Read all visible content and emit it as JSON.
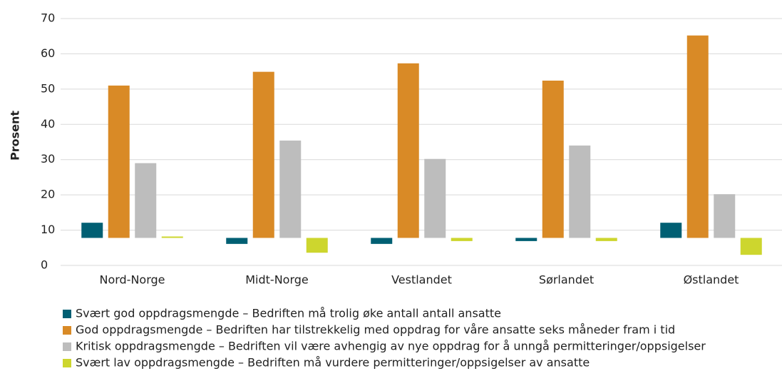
{
  "chart_data": {
    "type": "bar",
    "y_label": "Prosent",
    "categories": [
      "Nord-Norge",
      "Midt-Norge",
      "Vestlandet",
      "Sørlandet",
      "Østlandet"
    ],
    "series": [
      {
        "name": "Svært god oppdragsmengde – Bedriften må trolig øke antall antall ansatte",
        "color": "#005f73",
        "values": [
          12.1,
          6.1,
          6.1,
          6.9,
          12.1
        ]
      },
      {
        "name": "God oppdragsmengde – Bedriften har tilstrekkelig med oppdrag for våre ansatte seks måneder fram i tid",
        "color": "#d98a26",
        "values": [
          51,
          54.9,
          57.3,
          52.4,
          65.2
        ]
      },
      {
        "name": "Kritisk oppdragsmengde – Bedriften vil være avhengig av nye oppdrag for å unngå permitteringer/oppsigelser",
        "color": "#bdbdbd",
        "values": [
          29,
          35.4,
          30.2,
          34,
          20.2
        ]
      },
      {
        "name": "Svært lav oppdragsmengde – Bedriften må vurdere permitteringer/oppsigelser av ansatte",
        "color": "#cdd62e",
        "values": [
          8.2,
          3.6,
          6.9,
          6.9,
          3
        ]
      }
    ],
    "bar_base": 7.8,
    "ylim": [
      0,
      70
    ],
    "yticks": [
      0,
      10,
      20,
      30,
      40,
      50,
      60,
      70
    ],
    "grid": true
  }
}
